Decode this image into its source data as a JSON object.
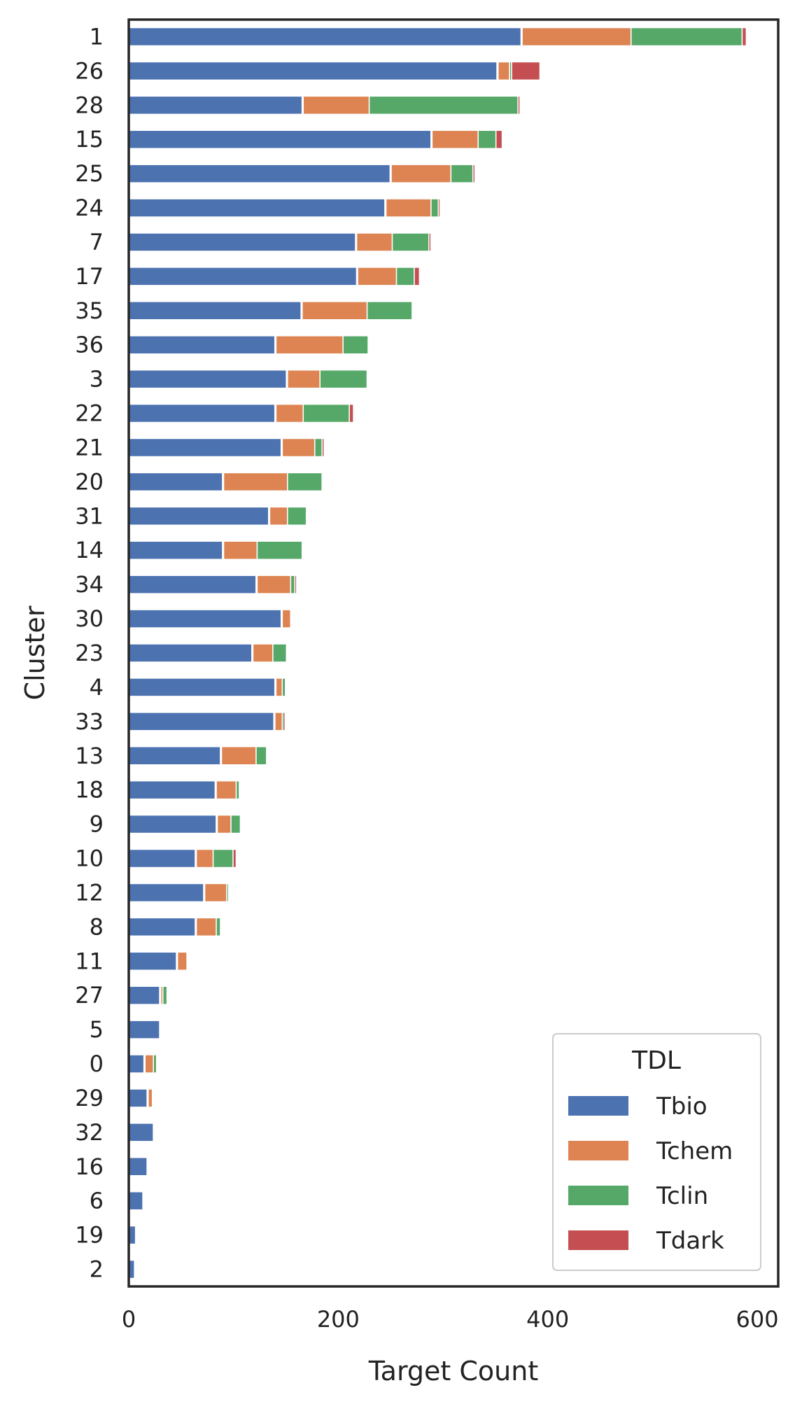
{
  "chart_data": {
    "type": "bar",
    "orientation": "horizontal",
    "stacked": true,
    "xlabel": "Target Count",
    "ylabel": "Cluster",
    "xlim": [
      0,
      620
    ],
    "xticks": [
      0,
      200,
      400,
      600
    ],
    "xtick_labels": [
      "0",
      "200",
      "400",
      "600"
    ],
    "grid": false,
    "legend": {
      "title": "TDL",
      "placement": "bottom-right"
    },
    "categories": [
      "1",
      "26",
      "28",
      "15",
      "25",
      "24",
      "7",
      "17",
      "35",
      "36",
      "3",
      "22",
      "21",
      "20",
      "31",
      "14",
      "34",
      "30",
      "23",
      "4",
      "33",
      "13",
      "18",
      "9",
      "10",
      "12",
      "8",
      "11",
      "27",
      "5",
      "0",
      "29",
      "32",
      "16",
      "6",
      "19",
      "2"
    ],
    "series": [
      {
        "name": "Tbio",
        "color": "#4c72b0",
        "values": [
          375,
          352,
          166,
          289,
          250,
          245,
          217,
          218,
          165,
          140,
          151,
          140,
          146,
          90,
          134,
          90,
          122,
          146,
          118,
          140,
          139,
          88,
          83,
          84,
          64,
          72,
          64,
          46,
          30,
          30,
          15,
          18,
          24,
          18,
          14,
          7,
          6
        ]
      },
      {
        "name": "Tchem",
        "color": "#dd8452",
        "values": [
          104,
          11,
          63,
          44,
          57,
          43,
          34,
          37,
          62,
          64,
          31,
          26,
          31,
          61,
          17,
          32,
          32,
          8,
          19,
          6,
          7,
          33,
          19,
          13,
          16,
          21,
          19,
          9,
          2,
          0,
          8,
          4,
          0,
          0,
          0,
          0,
          0
        ]
      },
      {
        "name": "Tclin",
        "color": "#55a868",
        "values": [
          106,
          2,
          142,
          17,
          21,
          7,
          35,
          17,
          43,
          24,
          45,
          44,
          7,
          33,
          18,
          43,
          4,
          0,
          13,
          3,
          1,
          10,
          3,
          9,
          19,
          1,
          4,
          0,
          4,
          0,
          3,
          0,
          0,
          0,
          0,
          0,
          0
        ]
      },
      {
        "name": "Tdark",
        "color": "#c44e52",
        "values": [
          4,
          27,
          2,
          6,
          2,
          1,
          2,
          5,
          0,
          0,
          0,
          4,
          2,
          0,
          0,
          0,
          1,
          0,
          0,
          0,
          1,
          0,
          0,
          0,
          3,
          0,
          0,
          0,
          0,
          0,
          0,
          0,
          0,
          0,
          0,
          0,
          0
        ]
      }
    ]
  }
}
